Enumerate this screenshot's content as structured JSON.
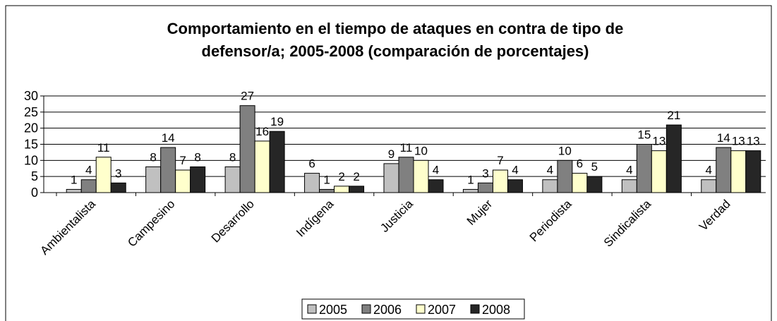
{
  "chart_data": {
    "type": "bar",
    "title": [
      "Comportamiento en el tiempo de ataques en contra de tipo de",
      "defensor/a; 2005-2008 (comparación de porcentajes)"
    ],
    "categories": [
      "Ambientalista",
      "Campesino",
      "Desarrollo",
      "Indígena",
      "Justicia",
      "Mujer",
      "Periodista",
      "Sindicalista",
      "Verdad"
    ],
    "series": [
      {
        "name": "2005",
        "color": "#c0c0c0",
        "values": [
          1,
          8,
          8,
          6,
          9,
          1,
          4,
          4,
          4
        ]
      },
      {
        "name": "2006",
        "color": "#808080",
        "values": [
          4,
          14,
          27,
          1,
          11,
          3,
          10,
          15,
          14
        ]
      },
      {
        "name": "2007",
        "color": "#ffffcc",
        "values": [
          11,
          7,
          16,
          2,
          10,
          7,
          6,
          13,
          13
        ]
      },
      {
        "name": "2008",
        "color": "#262626",
        "values": [
          3,
          8,
          19,
          2,
          4,
          4,
          5,
          21,
          13
        ]
      }
    ],
    "ylim": [
      0,
      30
    ],
    "yticks": [
      0,
      5,
      10,
      15,
      20,
      25,
      30
    ],
    "grid": true,
    "legend": "bottom"
  }
}
